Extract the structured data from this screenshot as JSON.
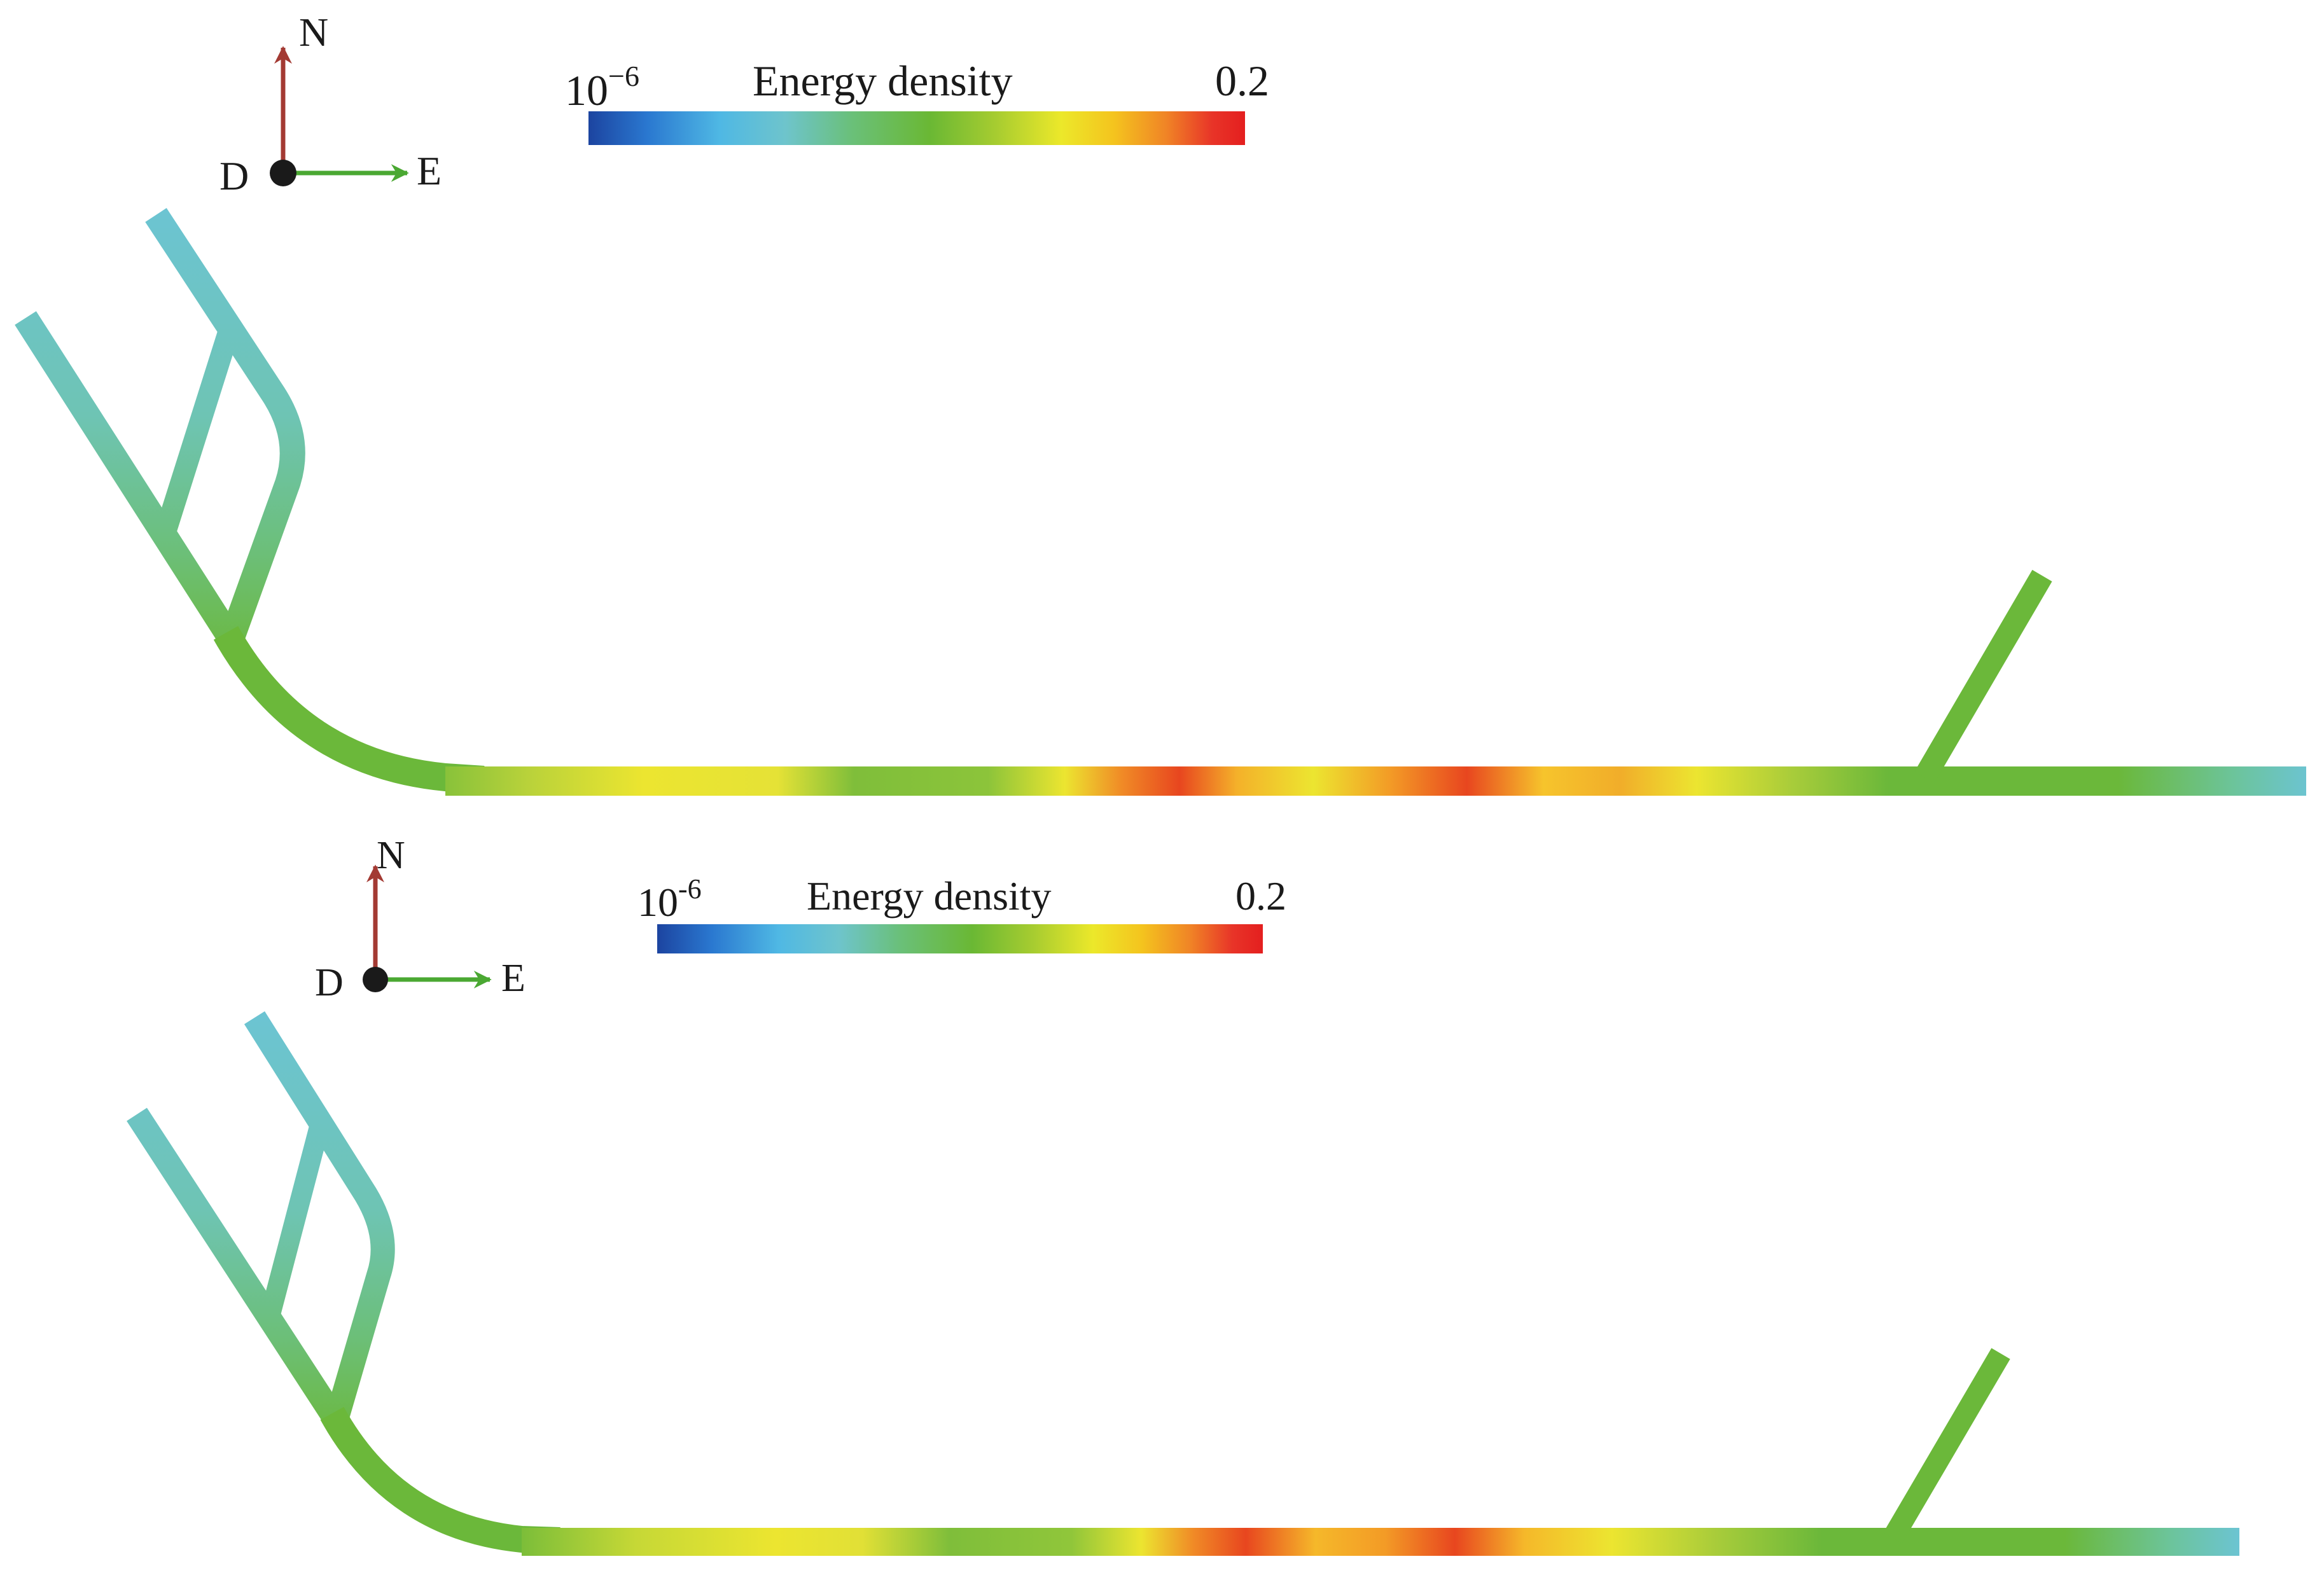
{
  "panels": [
    {
      "compass": {
        "north": "N",
        "east": "E",
        "down": "D"
      },
      "colorbar": {
        "title": "Energy density",
        "min_label_base": "10",
        "min_label_exp": "−6",
        "max_label": "0.2"
      }
    },
    {
      "compass": {
        "north": "N",
        "east": "E",
        "down": "D"
      },
      "colorbar": {
        "title": "Energy density",
        "min_label_base": "10",
        "min_label_exp": "-6",
        "max_label": "0.2"
      }
    }
  ],
  "colors": {
    "north_arrow": "#a33a33",
    "east_arrow": "#4aa832",
    "origin_dot": "#1a1a1a",
    "colormap": [
      "#1c44a0",
      "#2a78d0",
      "#4fb8e4",
      "#6ec4cc",
      "#6ac07a",
      "#6ab834",
      "#a6cc30",
      "#ece82a",
      "#f4c41e",
      "#f08426",
      "#e83428",
      "#e41f1f"
    ],
    "tunnel_cool": "#6cc4d2",
    "tunnel_mid": "#6bb83a",
    "tunnel_warm": "#ece530",
    "tunnel_hot": "#e8461f"
  }
}
